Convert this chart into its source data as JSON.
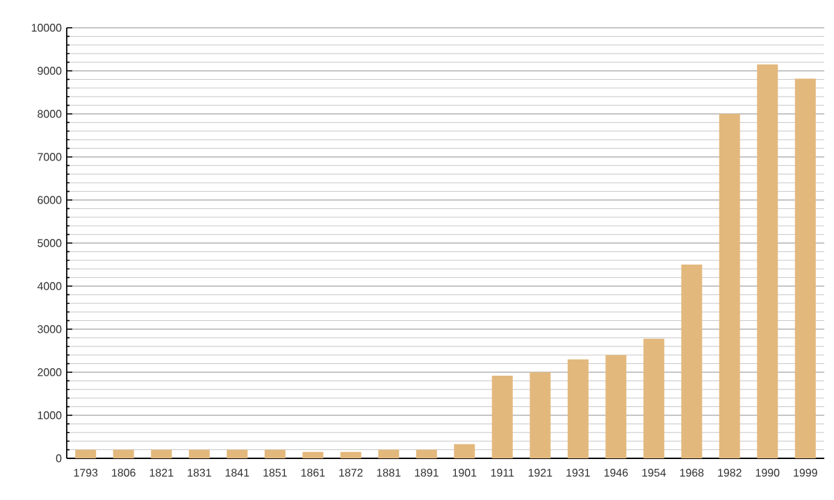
{
  "chart_data": {
    "type": "bar",
    "categories": [
      "1793",
      "1806",
      "1821",
      "1831",
      "1841",
      "1851",
      "1861",
      "1872",
      "1881",
      "1891",
      "1901",
      "1911",
      "1921",
      "1931",
      "1946",
      "1954",
      "1968",
      "1982",
      "1990",
      "1999"
    ],
    "values": [
      200,
      200,
      200,
      200,
      200,
      200,
      150,
      150,
      200,
      200,
      330,
      1920,
      2000,
      2300,
      2400,
      2780,
      4500,
      8000,
      9150,
      8820
    ],
    "color": "#e3b87d",
    "ylim": [
      0,
      10000
    ],
    "yticks": [
      0,
      {
        "value": 200,
        "label": null
      },
      {
        "value": 400,
        "label": null
      },
      {
        "value": 600,
        "label": null
      },
      {
        "value": 800,
        "label": null
      },
      1000,
      {
        "value": 1200,
        "label": null
      },
      {
        "value": 1400,
        "label": null
      },
      {
        "value": 1600,
        "label": null
      },
      {
        "value": 1800,
        "label": null
      },
      2000,
      {
        "value": 2200,
        "label": null
      },
      {
        "value": 2400,
        "label": null
      },
      {
        "value": 2600,
        "label": null
      },
      {
        "value": 2800,
        "label": null
      },
      3000,
      {
        "value": 3200,
        "label": null
      },
      {
        "value": 3400,
        "label": null
      },
      {
        "value": 3600,
        "label": null
      },
      {
        "value": 3800,
        "label": null
      },
      4000,
      {
        "value": 4200,
        "label": null
      },
      {
        "value": 4400,
        "label": null
      },
      {
        "value": 4600,
        "label": null
      },
      {
        "value": 4800,
        "label": null
      },
      5000,
      {
        "value": 5200,
        "label": null
      },
      {
        "value": 5400,
        "label": null
      },
      {
        "value": 5600,
        "label": null
      },
      {
        "value": 5800,
        "label": null
      },
      6000,
      {
        "value": 6200,
        "label": null
      },
      {
        "value": 6400,
        "label": null
      },
      {
        "value": 6600,
        "label": null
      },
      {
        "value": 6800,
        "label": null
      },
      7000,
      {
        "value": 7200,
        "label": null
      },
      {
        "value": 7400,
        "label": null
      },
      {
        "value": 7600,
        "label": null
      },
      {
        "value": 7800,
        "label": null
      },
      8000,
      {
        "value": 8200,
        "label": null
      },
      {
        "value": 8400,
        "label": null
      },
      {
        "value": 8600,
        "label": null
      },
      {
        "value": 8800,
        "label": null
      },
      9000,
      {
        "value": 9200,
        "label": null
      },
      {
        "value": 9400,
        "label": null
      },
      {
        "value": 9600,
        "label": null
      },
      {
        "value": 9800,
        "label": null
      },
      10000
    ],
    "grid": "y"
  }
}
